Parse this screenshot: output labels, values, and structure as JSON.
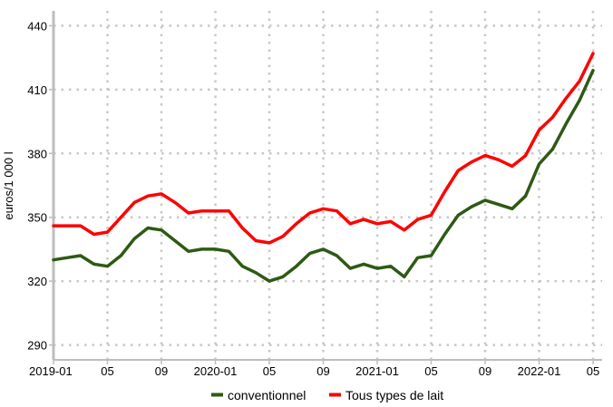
{
  "chart_data": {
    "type": "line",
    "title": "",
    "xlabel": "",
    "ylabel": "euros/1 000 l",
    "ylim": [
      283,
      447
    ],
    "yticks": [
      290,
      320,
      350,
      380,
      410,
      440
    ],
    "grid": true,
    "legend_position": "bottom",
    "x": [
      "2019-01",
      "2019-02",
      "2019-03",
      "2019-04",
      "2019-05",
      "2019-06",
      "2019-07",
      "2019-08",
      "2019-09",
      "2019-10",
      "2019-11",
      "2019-12",
      "2020-01",
      "2020-02",
      "2020-03",
      "2020-04",
      "2020-05",
      "2020-06",
      "2020-07",
      "2020-08",
      "2020-09",
      "2020-10",
      "2020-11",
      "2020-12",
      "2021-01",
      "2021-02",
      "2021-03",
      "2021-04",
      "2021-05",
      "2021-06",
      "2021-07",
      "2021-08",
      "2021-09",
      "2021-10",
      "2021-11",
      "2021-12",
      "2022-01",
      "2022-02",
      "2022-03",
      "2022-04",
      "2022-05"
    ],
    "xtick_labels": [
      {
        "index": 0,
        "label": "2019-01"
      },
      {
        "index": 4,
        "label": "05"
      },
      {
        "index": 8,
        "label": "09"
      },
      {
        "index": 12,
        "label": "2020-01"
      },
      {
        "index": 16,
        "label": "05"
      },
      {
        "index": 20,
        "label": "09"
      },
      {
        "index": 24,
        "label": "2021-01"
      },
      {
        "index": 28,
        "label": "05"
      },
      {
        "index": 32,
        "label": "09"
      },
      {
        "index": 36,
        "label": "2022-01"
      },
      {
        "index": 40,
        "label": "05"
      }
    ],
    "series": [
      {
        "name": "conventionnel",
        "color": "#2d5a14",
        "values": [
          330,
          331,
          332,
          328,
          327,
          332,
          340,
          345,
          344,
          339,
          334,
          335,
          335,
          334,
          327,
          324,
          320,
          322,
          327,
          333,
          335,
          332,
          326,
          328,
          326,
          327,
          322,
          331,
          332,
          342,
          351,
          355,
          358,
          356,
          354,
          360,
          375,
          382,
          394,
          405,
          419
        ]
      },
      {
        "name": "Tous types de lait",
        "color": "#ff0000",
        "values": [
          346,
          346,
          346,
          342,
          343,
          350,
          357,
          360,
          361,
          357,
          352,
          353,
          353,
          353,
          345,
          339,
          338,
          341,
          347,
          352,
          354,
          353,
          347,
          349,
          347,
          348,
          344,
          349,
          351,
          362,
          372,
          376,
          379,
          377,
          374,
          379,
          391,
          397,
          406,
          414,
          427
        ]
      }
    ]
  }
}
